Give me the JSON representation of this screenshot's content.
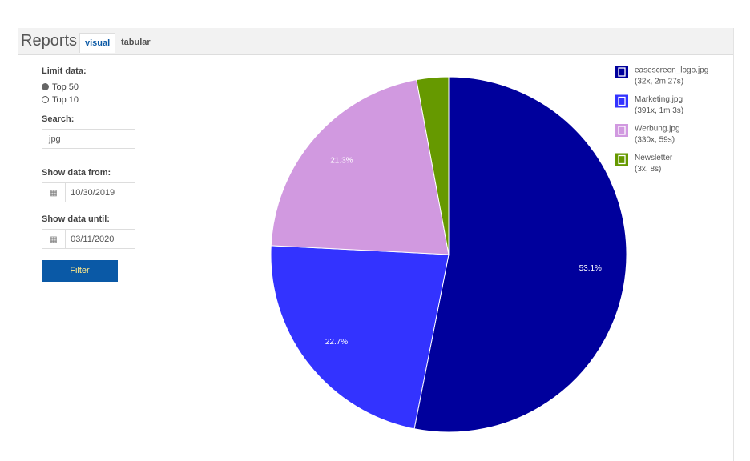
{
  "header": {
    "title": "Reports",
    "tabs": [
      "visual",
      "tabular"
    ]
  },
  "form": {
    "limit_label": "Limit data:",
    "options": [
      "Top 50",
      "Top 10"
    ],
    "search_label": "Search:",
    "search_value": "jpg",
    "from_label": "Show data from:",
    "from_value": "10/30/2019",
    "until_label": "Show data until:",
    "until_value": "03/11/2020",
    "button": "Filter"
  },
  "chart_data": {
    "type": "pie",
    "categories": [
      "easescreen_logo.jpg",
      "Marketing.jpg",
      "Werbung.jpg",
      "Newsletter"
    ],
    "details": [
      "(32x, 2m 27s)",
      "(391x, 1m 3s)",
      "(330x, 59s)",
      "(3x, 8s)"
    ],
    "values": [
      53.1,
      22.7,
      21.3,
      2.9
    ],
    "value_labels": [
      "53.1%",
      "22.7%",
      "21.3%",
      null
    ],
    "colors": [
      "#00009c",
      "#3333ff",
      "#d199e0",
      "#669900"
    ]
  }
}
